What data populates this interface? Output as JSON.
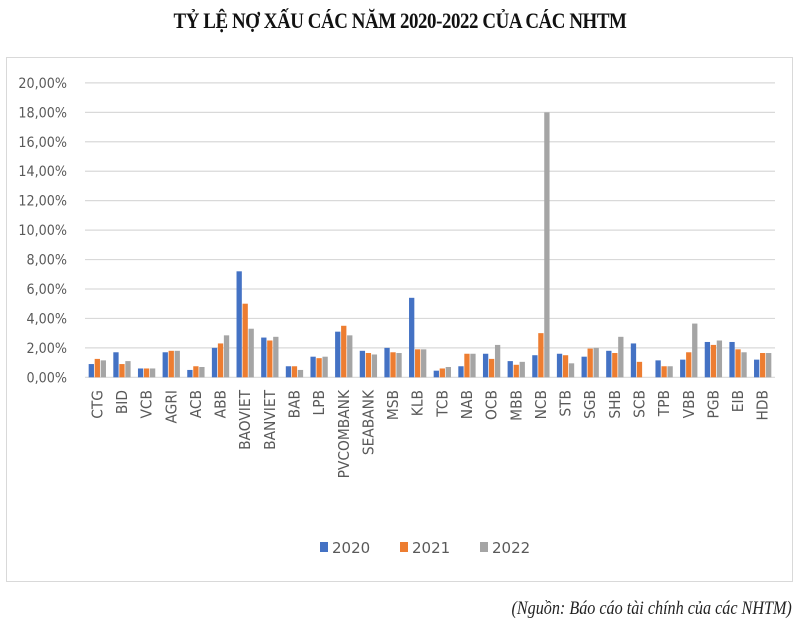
{
  "title": "TỶ LỆ NỢ XẤU CÁC NĂM 2020-2022 CỦA CÁC NHTM",
  "source": "(Nguồn: Báo cáo tài chính của các NHTM)",
  "colors": {
    "2020": "#4472c4",
    "2021": "#ed7d31",
    "2022": "#a5a5a5",
    "grid": "#d9d9d9",
    "axis_text": "#595959"
  },
  "chart_data": {
    "type": "bar",
    "title": "TỶ LỆ NỢ XẤU CÁC NĂM 2020-2022 CỦA CÁC NHTM",
    "xlabel": "",
    "ylabel": "",
    "ylim": [
      0,
      20
    ],
    "yticks": [
      "0,00%",
      "2,00%",
      "4,00%",
      "6,00%",
      "8,00%",
      "10,00%",
      "12,00%",
      "14,00%",
      "16,00%",
      "18,00%",
      "20,00%"
    ],
    "grid": true,
    "legend_position": "bottom",
    "categories": [
      "CTG",
      "BID",
      "VCB",
      "AGRI",
      "ACB",
      "ABB",
      "BAOVIET",
      "BANVIET",
      "BAB",
      "LPB",
      "PVCOMBANK",
      "SEABANK",
      "MSB",
      "KLB",
      "TCB",
      "NAB",
      "OCB",
      "MBB",
      "NCB",
      "STB",
      "SGB",
      "SHB",
      "SCB",
      "TPB",
      "VBB",
      "PGB",
      "EIB",
      "HDB"
    ],
    "series": [
      {
        "name": "2020",
        "color": "#4472c4",
        "values": [
          0.9,
          1.7,
          0.6,
          1.7,
          0.5,
          2.0,
          7.2,
          2.7,
          0.75,
          1.4,
          3.1,
          1.8,
          2.0,
          5.4,
          0.45,
          0.75,
          1.6,
          1.1,
          1.5,
          1.6,
          1.4,
          1.8,
          2.3,
          1.15,
          1.2,
          2.4,
          2.4,
          1.2
        ]
      },
      {
        "name": "2021",
        "color": "#ed7d31",
        "values": [
          1.25,
          0.9,
          0.6,
          1.8,
          0.75,
          2.3,
          5.0,
          2.5,
          0.75,
          1.3,
          3.5,
          1.65,
          1.7,
          1.9,
          0.6,
          1.6,
          1.25,
          0.85,
          3.0,
          1.5,
          1.95,
          1.65,
          1.05,
          0.75,
          1.7,
          2.2,
          1.9,
          1.65
        ]
      },
      {
        "name": "2022",
        "color": "#a5a5a5",
        "values": [
          1.15,
          1.1,
          0.6,
          1.8,
          0.7,
          2.85,
          3.3,
          2.75,
          0.5,
          1.4,
          2.85,
          1.55,
          1.65,
          1.9,
          0.7,
          1.6,
          2.2,
          1.05,
          18.0,
          0.95,
          2.0,
          2.75,
          0,
          0.75,
          3.65,
          2.5,
          1.7,
          1.65
        ]
      }
    ]
  },
  "legend": {
    "items": [
      "2020",
      "2021",
      "2022"
    ]
  }
}
